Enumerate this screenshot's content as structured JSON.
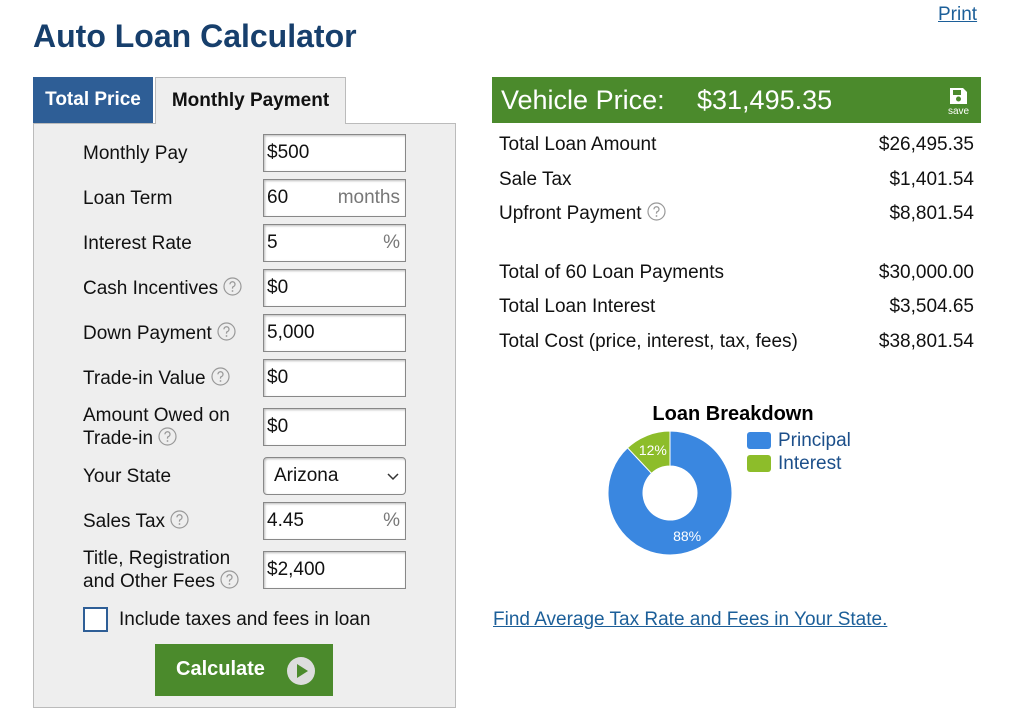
{
  "print_link": "Print",
  "title": "Auto Loan Calculator",
  "tabs": [
    "Total Price",
    "Monthly Payment"
  ],
  "form": {
    "fields": [
      {
        "label": "Monthly Pay",
        "value": "$500"
      },
      {
        "label": "Loan Term",
        "value": "60",
        "unit": "months"
      },
      {
        "label": "Interest Rate",
        "value": "5",
        "unit": "%"
      },
      {
        "label": "Cash Incentives",
        "value": "$0",
        "help": true
      },
      {
        "label": "Down Payment",
        "value": "5,000",
        "help": true
      },
      {
        "label": "Trade-in Value",
        "value": "$0",
        "help": true
      },
      {
        "label": "Amount Owed on Trade-in",
        "value": "$0",
        "help": true
      },
      {
        "label": "Your State",
        "value": "Arizona",
        "select": true
      },
      {
        "label": "Sales Tax",
        "value": "4.45",
        "unit": "%",
        "help": true
      },
      {
        "label": "Title, Registration and Other Fees",
        "value": "$2,400",
        "help": true
      }
    ],
    "checkbox": "Include taxes and fees in loan",
    "button": "Calculate"
  },
  "results": {
    "vehicle_price_label": "Vehicle Price:",
    "vehicle_price": "$31,495.35",
    "save": "save",
    "groups": [
      [
        {
          "label": "Total Loan Amount",
          "value": "$26,495.35"
        },
        {
          "label": "Sale Tax",
          "value": "$1,401.54"
        },
        {
          "label": "Upfront Payment",
          "value": "$8,801.54",
          "help": true
        }
      ],
      [
        {
          "label": "Total of 60 Loan Payments",
          "value": "$30,000.00"
        },
        {
          "label": "Total Loan Interest",
          "value": "$3,504.65"
        },
        {
          "label": "Total Cost (price, interest, tax, fees)",
          "value": "$38,801.54"
        }
      ]
    ]
  },
  "loan_breakdown": {
    "type": "pie",
    "title": "Loan Breakdown",
    "categories": [
      "Principal",
      "Interest"
    ],
    "values": [
      88,
      12
    ],
    "value_labels": [
      "88%",
      "12%"
    ],
    "colors": [
      "#3a87e0",
      "#8dbd2a"
    ]
  },
  "link": "Find Average Tax Rate and Fees in Your State."
}
